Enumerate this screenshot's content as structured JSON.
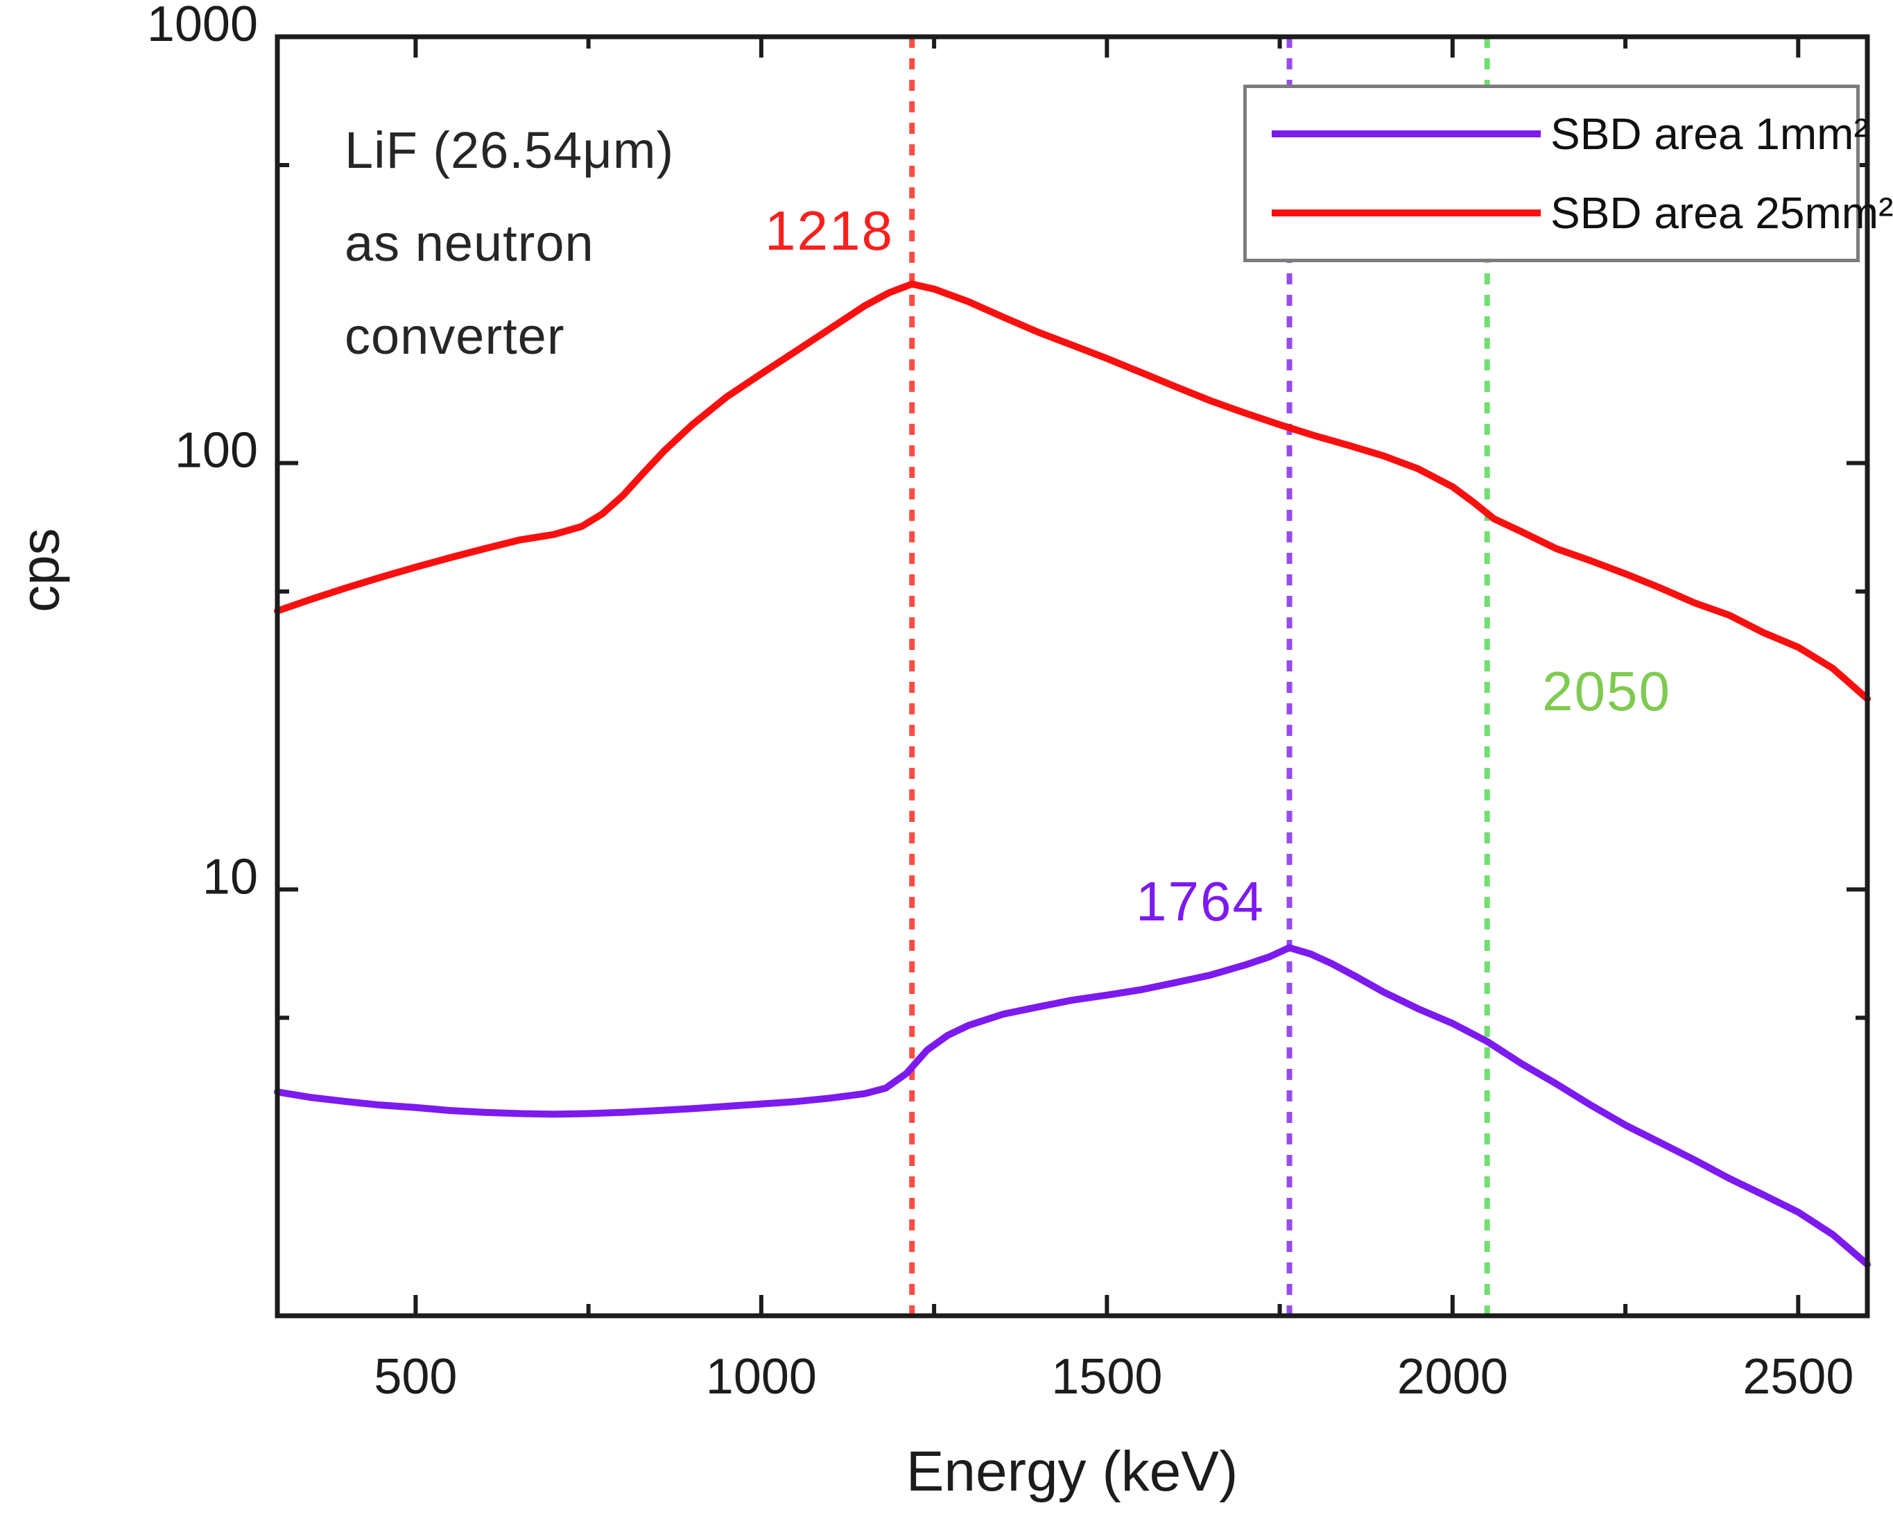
{
  "chart_data": {
    "type": "line",
    "title": "",
    "xlabel": "Energy (keV)",
    "ylabel": "cps",
    "grid": "off",
    "axis_color": "#1c1c1c",
    "x_axis": {
      "scale": "linear",
      "min": 300,
      "max": 2600,
      "major_ticks": [
        500,
        1000,
        1500,
        2000,
        2500
      ],
      "minor_ticks": [
        750,
        1250,
        1750,
        2250
      ]
    },
    "y_axis": {
      "scale": "log",
      "min": 1,
      "max": 1000,
      "major_ticks": [
        10,
        100,
        1000
      ],
      "minor_ticks": [
        5,
        50,
        500
      ]
    },
    "legend": {
      "position": "top-right",
      "entries": [
        {
          "label": "SBD area 1mm²",
          "color": "#7c1af0"
        },
        {
          "label": "SBD area 25mm²",
          "color": "#fa0f0f"
        }
      ]
    },
    "series": [
      {
        "name": "SBD area 1mm²",
        "color": "#7c1af0",
        "points": [
          [
            300,
            3.35
          ],
          [
            350,
            3.25
          ],
          [
            400,
            3.18
          ],
          [
            450,
            3.12
          ],
          [
            500,
            3.08
          ],
          [
            550,
            3.03
          ],
          [
            600,
            3.0
          ],
          [
            650,
            2.98
          ],
          [
            700,
            2.97
          ],
          [
            750,
            2.98
          ],
          [
            800,
            3.0
          ],
          [
            850,
            3.03
          ],
          [
            900,
            3.06
          ],
          [
            950,
            3.1
          ],
          [
            1000,
            3.14
          ],
          [
            1050,
            3.18
          ],
          [
            1100,
            3.24
          ],
          [
            1150,
            3.32
          ],
          [
            1180,
            3.42
          ],
          [
            1210,
            3.7
          ],
          [
            1240,
            4.2
          ],
          [
            1270,
            4.55
          ],
          [
            1300,
            4.8
          ],
          [
            1350,
            5.1
          ],
          [
            1400,
            5.3
          ],
          [
            1450,
            5.5
          ],
          [
            1500,
            5.65
          ],
          [
            1550,
            5.82
          ],
          [
            1600,
            6.05
          ],
          [
            1650,
            6.3
          ],
          [
            1700,
            6.65
          ],
          [
            1735,
            6.95
          ],
          [
            1764,
            7.3
          ],
          [
            1795,
            7.05
          ],
          [
            1825,
            6.7
          ],
          [
            1860,
            6.25
          ],
          [
            1900,
            5.75
          ],
          [
            1950,
            5.25
          ],
          [
            2000,
            4.85
          ],
          [
            2050,
            4.4
          ],
          [
            2100,
            3.9
          ],
          [
            2150,
            3.5
          ],
          [
            2200,
            3.12
          ],
          [
            2250,
            2.8
          ],
          [
            2300,
            2.55
          ],
          [
            2350,
            2.32
          ],
          [
            2400,
            2.1
          ],
          [
            2450,
            1.92
          ],
          [
            2500,
            1.75
          ],
          [
            2550,
            1.55
          ],
          [
            2600,
            1.32
          ]
        ]
      },
      {
        "name": "SBD area 25mm²",
        "color": "#fa0f0f",
        "points": [
          [
            300,
            45
          ],
          [
            350,
            48
          ],
          [
            400,
            51
          ],
          [
            450,
            54
          ],
          [
            500,
            57
          ],
          [
            550,
            60
          ],
          [
            600,
            63
          ],
          [
            650,
            66
          ],
          [
            700,
            68
          ],
          [
            740,
            71
          ],
          [
            770,
            76
          ],
          [
            800,
            84
          ],
          [
            830,
            95
          ],
          [
            860,
            107
          ],
          [
            900,
            123
          ],
          [
            950,
            143
          ],
          [
            1000,
            162
          ],
          [
            1050,
            183
          ],
          [
            1100,
            207
          ],
          [
            1150,
            234
          ],
          [
            1185,
            251
          ],
          [
            1218,
            263
          ],
          [
            1250,
            256
          ],
          [
            1300,
            239
          ],
          [
            1350,
            220
          ],
          [
            1400,
            203
          ],
          [
            1450,
            189
          ],
          [
            1500,
            176
          ],
          [
            1550,
            163
          ],
          [
            1600,
            151
          ],
          [
            1650,
            140
          ],
          [
            1700,
            131
          ],
          [
            1750,
            123
          ],
          [
            1800,
            116
          ],
          [
            1850,
            110
          ],
          [
            1900,
            104
          ],
          [
            1950,
            97
          ],
          [
            2000,
            88
          ],
          [
            2030,
            81
          ],
          [
            2060,
            74
          ],
          [
            2100,
            69
          ],
          [
            2150,
            63
          ],
          [
            2200,
            59
          ],
          [
            2250,
            55
          ],
          [
            2300,
            51
          ],
          [
            2350,
            47
          ],
          [
            2400,
            44
          ],
          [
            2450,
            40
          ],
          [
            2500,
            37
          ],
          [
            2550,
            33
          ],
          [
            2600,
            28
          ]
        ]
      }
    ],
    "vlines": [
      {
        "x": 1218,
        "label": "1218",
        "line_color": "#fb4d45",
        "label_color": "#f9201e",
        "style": "dashed"
      },
      {
        "x": 1764,
        "label": "1764",
        "line_color": "#964bf2",
        "label_color": "#7c1af0",
        "style": "dashed"
      },
      {
        "x": 2050,
        "label": "2050",
        "line_color": "#70df70",
        "label_color": "#7fca4f",
        "style": "dashed"
      }
    ],
    "annotations": {
      "converter": {
        "text": "LiF (26.54μm)\nas neutron\nconverter",
        "color": "#262626"
      }
    }
  }
}
